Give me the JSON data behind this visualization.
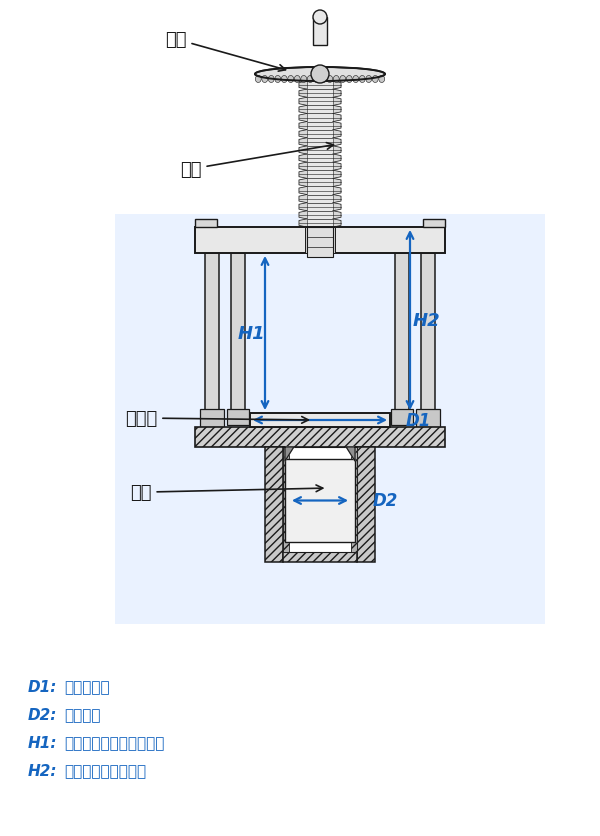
{
  "bg_color": "#ffffff",
  "light_blue_bg": "#EAF2FF",
  "blue_color": "#1565C0",
  "black_color": "#1a1a1a",
  "gray_fill": "#d0d0d0",
  "gray_mid": "#b8b8b8",
  "gray_dark": "#888888",
  "white_fill": "#ffffff",
  "labels": {
    "handwheel": "手轮",
    "screw": "丝杆",
    "worktable": "工作台",
    "piston": "活塞",
    "D1": "D1",
    "D2": "D2",
    "H1": "H1",
    "H2": "H2"
  },
  "legend": [
    {
      "key": "D1:",
      "text": "工作台直径"
    },
    {
      "key": "D2:",
      "text": "活塞直径"
    },
    {
      "key": "H1:",
      "text": "顶部支架与工作台间距离"
    },
    {
      "key": "H2:",
      "text": "丝杆与工作台间距离"
    }
  ],
  "figsize": [
    6.0,
    8.37
  ],
  "dpi": 100
}
